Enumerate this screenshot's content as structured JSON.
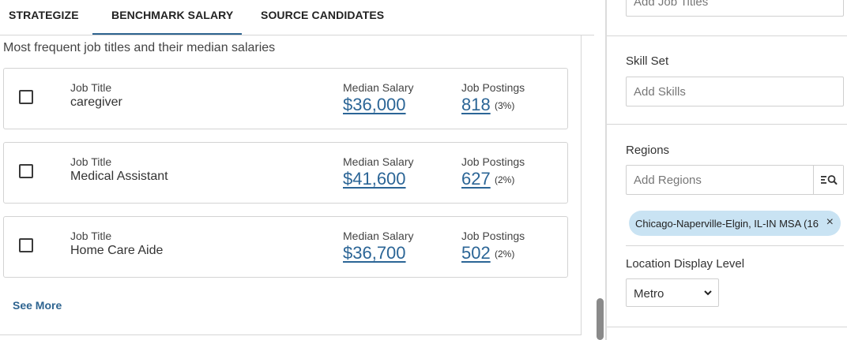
{
  "tabs": [
    {
      "label": "STRATEGIZE"
    },
    {
      "label": "BENCHMARK SALARY"
    },
    {
      "label": "SOURCE CANDIDATES"
    }
  ],
  "main": {
    "description": "Most frequent job titles and their median salaries",
    "labels": {
      "job_title": "Job Title",
      "median_salary": "Median Salary",
      "job_postings": "Job Postings"
    },
    "rows": [
      {
        "title": "caregiver",
        "salary": "$36,000",
        "postings": "818",
        "share": "(3%)"
      },
      {
        "title": "Medical Assistant",
        "salary": "$41,600",
        "postings": "627",
        "share": "(2%)"
      },
      {
        "title": "Home Care Aide",
        "salary": "$36,700",
        "postings": "502",
        "share": "(2%)"
      }
    ],
    "see_more": "See More"
  },
  "filters": {
    "job_titles_placeholder": "Add Job Titles",
    "skill_set": {
      "label": "Skill Set",
      "placeholder": "Add Skills"
    },
    "regions": {
      "label": "Regions",
      "placeholder": "Add Regions",
      "search_icon": "list-search-icon",
      "chip": "Chicago-Naperville-Elgin, IL-IN MSA (16",
      "chip_close": "×"
    },
    "location_display": {
      "label": "Location Display Level",
      "selected": "Metro"
    }
  },
  "colors": {
    "accent": "#2e6490",
    "link": "#2b6596",
    "chip_bg": "#c9e3f3"
  }
}
